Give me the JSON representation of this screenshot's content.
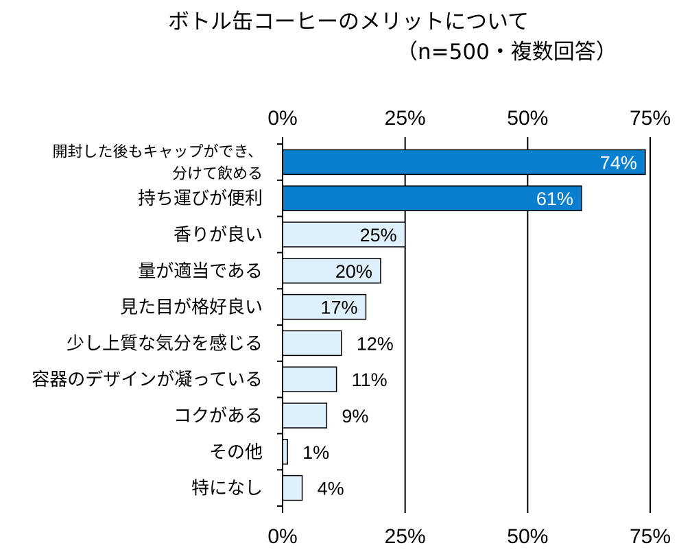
{
  "chart_data": {
    "type": "bar",
    "orientation": "horizontal",
    "title": "ボトル缶コーヒーのメリットについて",
    "subtitle": "（n=500・複数回答）",
    "categories": [
      "開封した後もキャップができ、\n分けて飲める",
      "持ち運びが便利",
      "香りが良い",
      "量が適当である",
      "見た目が格好良い",
      "少し上質な気分を感じる",
      "容器のデザインが凝っている",
      "コクがある",
      "その他",
      "特になし"
    ],
    "values": [
      74,
      61,
      25,
      20,
      17,
      12,
      11,
      9,
      1,
      4
    ],
    "value_labels": [
      "74%",
      "61%",
      "25%",
      "20%",
      "17%",
      "12%",
      "11%",
      "9%",
      "1%",
      "4%"
    ],
    "xlim": [
      0,
      75
    ],
    "ticks": [
      "0%",
      "25%",
      "50%",
      "75%"
    ],
    "tick_values": [
      0,
      25,
      50,
      75
    ],
    "grid": true,
    "axis_labels_top": true,
    "axis_labels_bottom": true,
    "colors": {
      "highlight": "#0a7fcf",
      "normal": "#def0fb",
      "border": "#000000",
      "highlight_text": "#ffffff",
      "normal_text": "#000000"
    },
    "highlight_count": 2
  }
}
